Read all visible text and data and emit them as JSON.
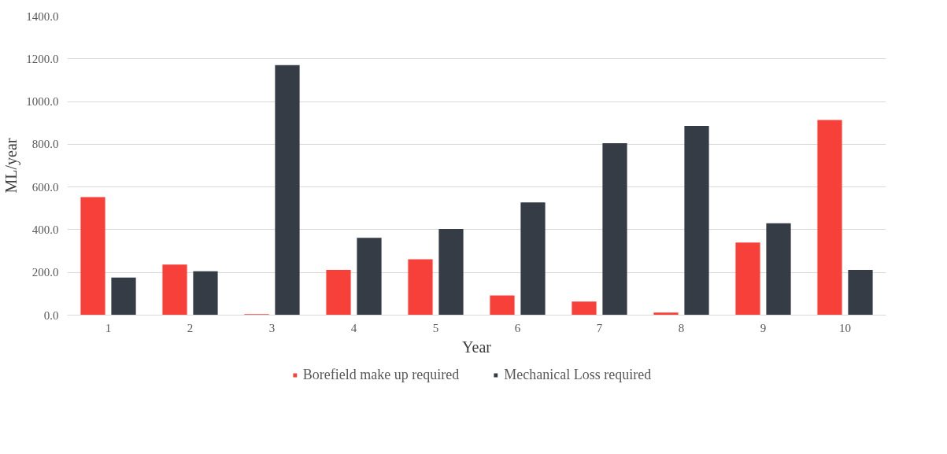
{
  "chart_data": {
    "type": "bar",
    "xlabel": "Year",
    "ylabel": "ML/year",
    "categories": [
      "1",
      "2",
      "3",
      "4",
      "5",
      "6",
      "7",
      "8",
      "9",
      "10"
    ],
    "series": [
      {
        "name": "Borefield make up required",
        "color": "#f8403a",
        "values": [
          553,
          237,
          5,
          212,
          262,
          92,
          64,
          12,
          340,
          914
        ]
      },
      {
        "name": "Mechanical Loss required",
        "color": "#353c46",
        "values": [
          176,
          205,
          1171,
          362,
          403,
          528,
          805,
          886,
          430,
          212
        ]
      }
    ],
    "ylim": [
      0,
      1400
    ],
    "yticks": [
      {
        "value": 0,
        "label": "0.0"
      },
      {
        "value": 200,
        "label": "200.0"
      },
      {
        "value": 400,
        "label": "400.0"
      },
      {
        "value": 600,
        "label": "600.0"
      },
      {
        "value": 800,
        "label": "800.0"
      },
      {
        "value": 1000,
        "label": "1000.0"
      },
      {
        "value": 1200,
        "label": "1200.0"
      },
      {
        "value": 1400,
        "label": "1400.0"
      }
    ],
    "grid": "y",
    "legend": "bottom"
  }
}
